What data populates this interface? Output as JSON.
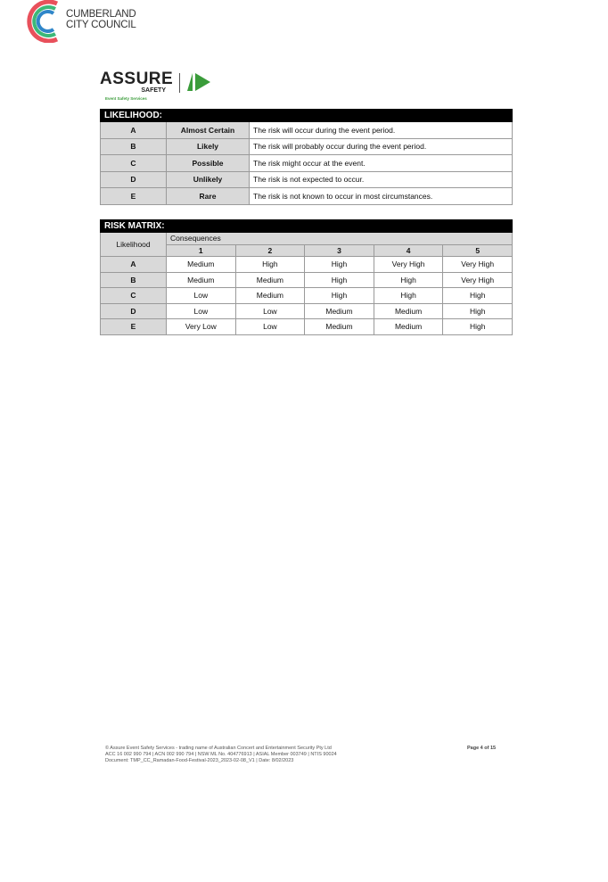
{
  "header": {
    "council_logo_text": [
      "CUMBERLAND",
      "CITY COUNCIL"
    ],
    "assure_logo": {
      "word": "ASSURE",
      "sub": "SAFETY",
      "tagline": "Event Safety Services"
    }
  },
  "likelihood": {
    "title": "LIKELIHOOD:",
    "rows": [
      [
        "A",
        "Almost Certain",
        "The risk will occur during the event period."
      ],
      [
        "B",
        "Likely",
        "The risk will probably occur during the event period."
      ],
      [
        "C",
        "Possible",
        "The risk might occur at the event."
      ],
      [
        "D",
        "Unlikely",
        "The risk is not expected to occur."
      ],
      [
        "E",
        "Rare",
        "The risk is not known to occur in most circumstances."
      ]
    ]
  },
  "risk_matrix": {
    "title": "RISK MATRIX:",
    "row_header": "Likelihood",
    "col_group": "Consequences",
    "columns": [
      "1",
      "2",
      "3",
      "4",
      "5"
    ],
    "rows": [
      {
        "label": "A",
        "cells": [
          "Medium",
          "High",
          "High",
          "Very High",
          "Very High"
        ]
      },
      {
        "label": "B",
        "cells": [
          "Medium",
          "Medium",
          "High",
          "High",
          "Very High"
        ]
      },
      {
        "label": "C",
        "cells": [
          "Low",
          "Medium",
          "High",
          "High",
          "High"
        ]
      },
      {
        "label": "D",
        "cells": [
          "Low",
          "Low",
          "Medium",
          "Medium",
          "High"
        ]
      },
      {
        "label": "E",
        "cells": [
          "Very Low",
          "Low",
          "Medium",
          "Medium",
          "High"
        ]
      }
    ]
  },
  "footer": {
    "lines": [
      "© Assure Event Safety Services - trading name of Australian Concert and Entertainment Security Pty Ltd",
      "ACC 16 002 990 794 | ACN 002 990 794 | NSW ML No. 404776913 | ASIAL Member 003749 | NTIS 90024",
      "Document: TMP_CC_Ramadan-Food-Festival-2023_2023-02-08_V1 | Date: 8/02/2023"
    ],
    "page": "Page 4 of 15"
  }
}
